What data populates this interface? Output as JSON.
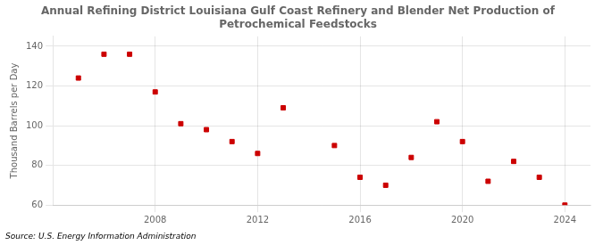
{
  "chart_data": {
    "type": "scatter",
    "title": "Annual Refining District Louisiana Gulf Coast Refinery and Blender Net Production of\nPetrochemical Feedstocks",
    "y_label": "Thousand Barrels per Day",
    "annotation": "Source: U.S. Energy Information Administration",
    "x": [
      2005,
      2006,
      2007,
      2008,
      2009,
      2010,
      2011,
      2012,
      2013,
      2015,
      2016,
      2017,
      2018,
      2019,
      2020,
      2021,
      2022,
      2023,
      2024
    ],
    "values": [
      124,
      136,
      136,
      117,
      101,
      98,
      92,
      86,
      109,
      90,
      74,
      70,
      84,
      102,
      92,
      72,
      82,
      74,
      60
    ],
    "color": "#cc0000",
    "marker": "square",
    "xlim": [
      2004,
      2025
    ],
    "ylim": [
      60,
      145
    ],
    "xticks": [
      2008,
      2012,
      2016,
      2020,
      2024
    ],
    "yticks": [
      60,
      80,
      100,
      120,
      140
    ],
    "grid": true
  }
}
